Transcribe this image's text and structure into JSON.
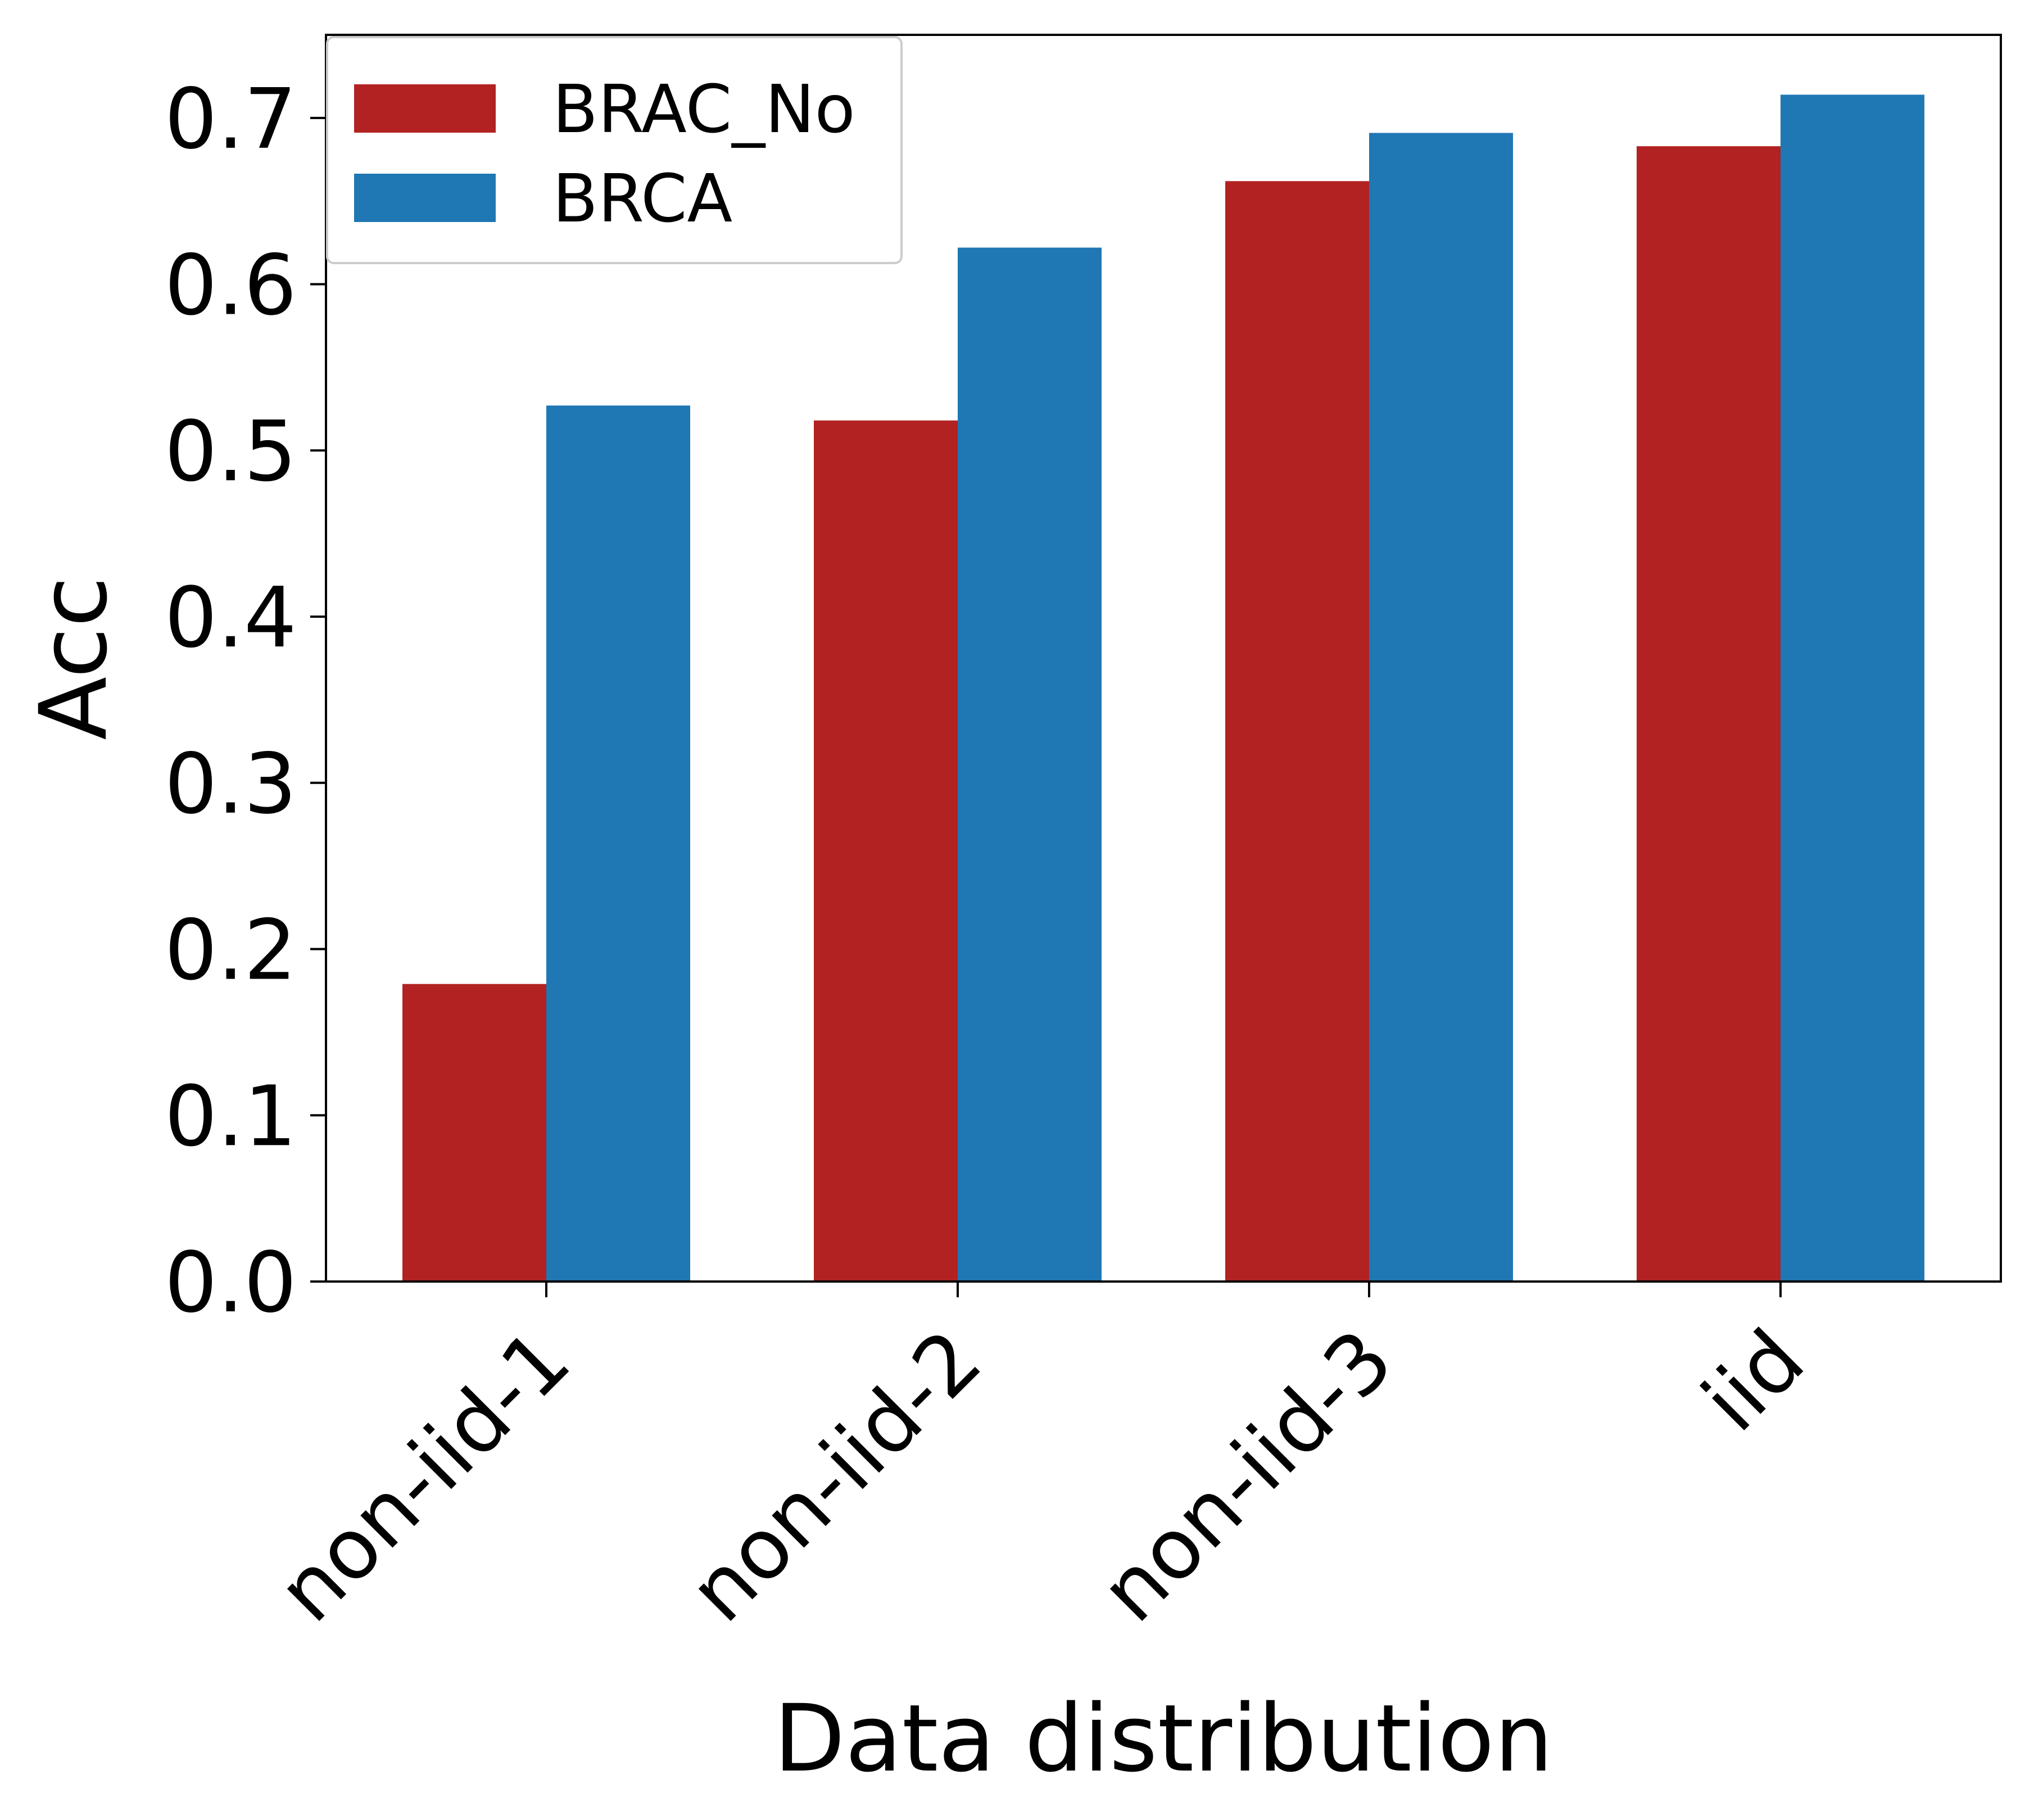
{
  "chart_data": {
    "type": "bar",
    "categories": [
      "non-iid-1",
      "non-iid-2",
      "non-iid-3",
      "iid"
    ],
    "series": [
      {
        "name": "BRAC_No",
        "values": [
          0.179,
          0.518,
          0.662,
          0.683
        ],
        "color": "#b22222"
      },
      {
        "name": "BRCA",
        "values": [
          0.527,
          0.622,
          0.691,
          0.714
        ],
        "color": "#1f77b4"
      }
    ],
    "xlabel": "Data distribution",
    "ylabel": "Acc",
    "ylim": [
      0,
      0.75
    ],
    "yticks": [
      0.0,
      0.1,
      0.2,
      0.3,
      0.4,
      0.5,
      0.6,
      0.7
    ],
    "ytick_labels": [
      "0.0",
      "0.1",
      "0.2",
      "0.3",
      "0.4",
      "0.5",
      "0.6",
      "0.7"
    ],
    "grid": false,
    "legend_position": "top-left"
  }
}
